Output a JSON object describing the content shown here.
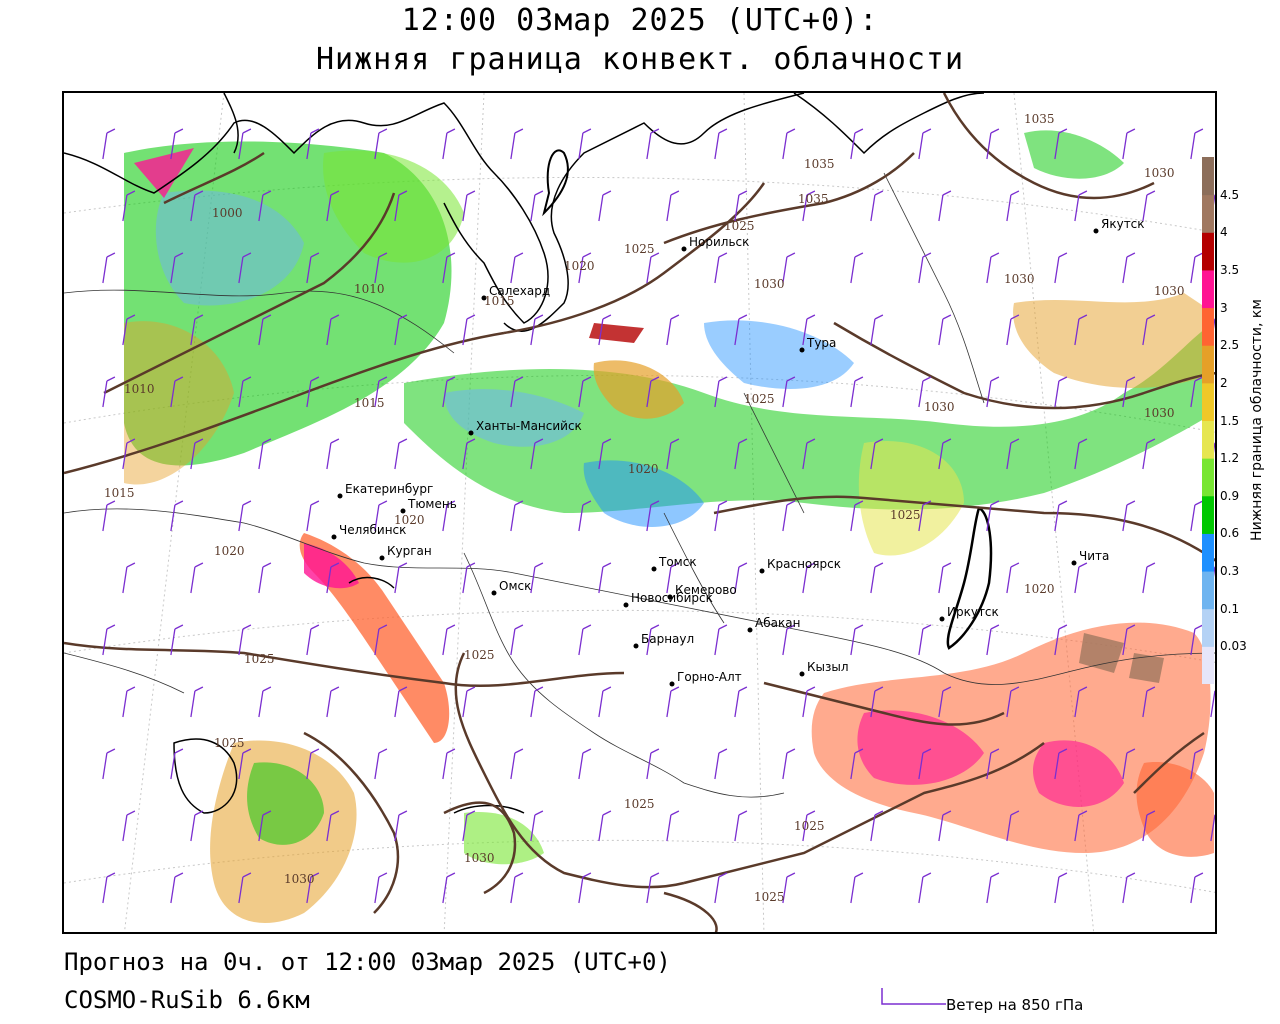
{
  "header": {
    "title_line1": "12:00 03мар 2025 (UTC+0):",
    "title_line2": "Нижняя граница конвект. облачности"
  },
  "footer": {
    "forecast": "Прогноз на 0ч. от 12:00 03мар 2025 (UTC+0)",
    "model": "COSMO-RuSib 6.6км",
    "wind_legend": "Ветер на 850 гПа"
  },
  "colorbar": {
    "title": "Нижняя граница облачности, км",
    "ticks": [
      "0.03",
      "0.1",
      "0.3",
      "0.6",
      "0.9",
      "1.2",
      "1.5",
      "2",
      "2.5",
      "3",
      "3.5",
      "4",
      "4.5"
    ],
    "colors": [
      "#e6e6fa",
      "#b4d2f5",
      "#6eb4f0",
      "#1e90ff",
      "#00c800",
      "#78e632",
      "#e6e650",
      "#f0c828",
      "#e6a028",
      "#ff6432",
      "#ff1493",
      "#b40000",
      "#a07860",
      "#8c6e5a"
    ]
  },
  "colors": {
    "isobar": "#5a3a2a",
    "wind_barb": "#7b2fd0",
    "coast": "#000000"
  },
  "cities": [
    {
      "name": "Норильск"
    },
    {
      "name": "Якутск"
    },
    {
      "name": "Салехард"
    },
    {
      "name": "Тура"
    },
    {
      "name": "Ханты-Мансийск"
    },
    {
      "name": "Екатеринбург"
    },
    {
      "name": "Тюмень"
    },
    {
      "name": "Челябинск"
    },
    {
      "name": "Курган"
    },
    {
      "name": "Омск"
    },
    {
      "name": "Новосибирск"
    },
    {
      "name": "Томск"
    },
    {
      "name": "Кемерово"
    },
    {
      "name": "Красноярск"
    },
    {
      "name": "Барнаул"
    },
    {
      "name": "Абакан"
    },
    {
      "name": "Горно-Алт"
    },
    {
      "name": "Кызыл"
    },
    {
      "name": "Иркутск"
    },
    {
      "name": "Чита"
    }
  ],
  "isobars": [
    "1000",
    "1010",
    "1010",
    "1015",
    "1015",
    "1015",
    "1020",
    "1020",
    "1020",
    "1020",
    "1020",
    "1025",
    "1025",
    "1025",
    "1025",
    "1025",
    "1025",
    "1025",
    "1025",
    "1025",
    "1025",
    "1030",
    "1030",
    "1030",
    "1030",
    "1030",
    "1030",
    "1030",
    "1030",
    "1035",
    "1035",
    "1035"
  ]
}
